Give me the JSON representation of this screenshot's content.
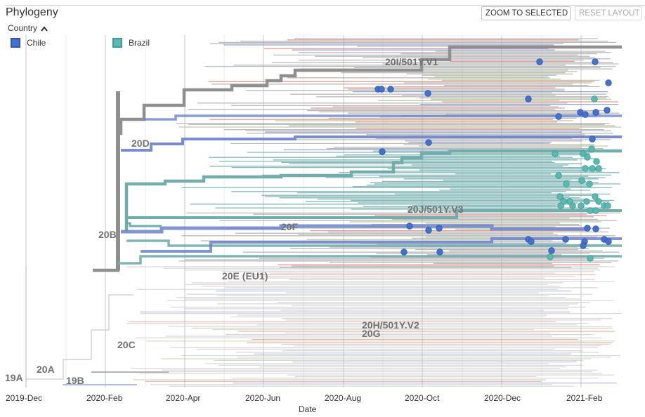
{
  "panel": {
    "title": "Phylogeny"
  },
  "color_by": {
    "label": "Country"
  },
  "legend": [
    {
      "label": "Chile",
      "color": "#4472ca"
    },
    {
      "label": "Brazil",
      "color": "#5cb8b2"
    }
  ],
  "buttons": {
    "zoom": "ZOOM TO SELECTED",
    "reset": "RESET LAYOUT"
  },
  "colors": {
    "highlight": "#8f8f8f",
    "brazil_branch": "#72adab",
    "chile_branch": "#6a82c9",
    "muted": "#c9c9c9",
    "red": "#d97462",
    "green": "#a6bb84"
  },
  "clades": [
    {
      "label": "20I/501Y.V1"
    },
    {
      "label": "20D"
    },
    {
      "label": "20J/501Y.V3"
    },
    {
      "label": "20F"
    },
    {
      "label": "20B"
    },
    {
      "label": "20E (EU1)"
    },
    {
      "label": "20H/501Y.V2"
    },
    {
      "label": "20G"
    },
    {
      "label": "20C"
    },
    {
      "label": "20A"
    },
    {
      "label": "19B"
    },
    {
      "label": "19A"
    }
  ],
  "axis": {
    "title": "Date",
    "ticks": [
      "2019-Dec",
      "2020-Feb",
      "2020-Apr",
      "2020-Jun",
      "2020-Aug",
      "2020-Oct",
      "2020-Dec",
      "2021-Feb"
    ]
  }
}
